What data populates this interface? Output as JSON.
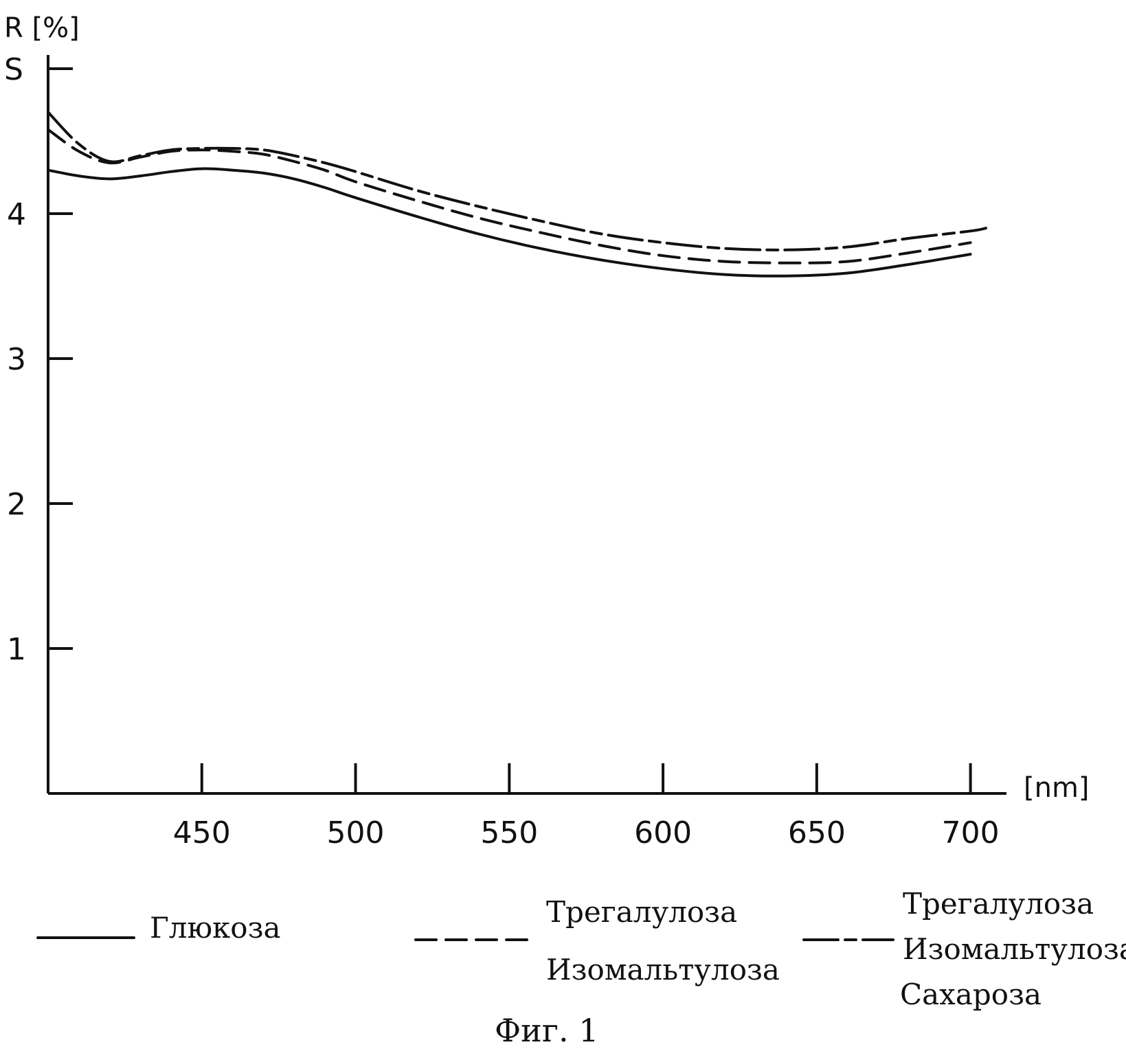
{
  "chart_data": {
    "type": "line",
    "ylabel": "R [%]",
    "xlabel": "[nm]",
    "xlim": [
      400,
      705
    ],
    "ylim": [
      0,
      5
    ],
    "xticks": [
      450,
      500,
      550,
      600,
      650,
      700
    ],
    "yticks": [
      1,
      2,
      3,
      4
    ],
    "ytick_top_label": "S",
    "series": [
      {
        "name": "Глюкоза",
        "style": "solid",
        "x": [
          400,
          410,
          420,
          430,
          440,
          450,
          460,
          470,
          480,
          490,
          500,
          520,
          540,
          560,
          580,
          600,
          620,
          640,
          660,
          680,
          700
        ],
        "y": [
          4.3,
          4.26,
          4.24,
          4.26,
          4.29,
          4.31,
          4.3,
          4.28,
          4.24,
          4.18,
          4.11,
          3.98,
          3.86,
          3.76,
          3.68,
          3.62,
          3.58,
          3.57,
          3.59,
          3.65,
          3.72
        ]
      },
      {
        "name": "Трегалулоза Изомальтулоза",
        "style": "dashed",
        "x": [
          400,
          410,
          420,
          430,
          440,
          450,
          460,
          470,
          480,
          490,
          500,
          520,
          540,
          560,
          580,
          600,
          620,
          640,
          660,
          680,
          700
        ],
        "y": [
          4.58,
          4.43,
          4.35,
          4.39,
          4.43,
          4.44,
          4.43,
          4.41,
          4.36,
          4.3,
          4.22,
          4.09,
          3.97,
          3.87,
          3.78,
          3.71,
          3.67,
          3.66,
          3.67,
          3.73,
          3.8
        ]
      },
      {
        "name": "Трегалулоза Изомальтулоза Сахароза",
        "style": "dash-dot",
        "x": [
          400,
          410,
          420,
          430,
          440,
          450,
          460,
          470,
          480,
          490,
          500,
          520,
          540,
          560,
          580,
          600,
          620,
          640,
          660,
          680,
          700,
          705
        ],
        "y": [
          4.7,
          4.48,
          4.36,
          4.4,
          4.44,
          4.45,
          4.45,
          4.44,
          4.4,
          4.35,
          4.29,
          4.16,
          4.05,
          3.95,
          3.86,
          3.8,
          3.76,
          3.75,
          3.77,
          3.83,
          3.88,
          3.9
        ]
      }
    ],
    "legend": [
      {
        "lines": [
          "Глюкоза"
        ]
      },
      {
        "lines": [
          "Трегалулоза",
          "Изомальтулоза"
        ]
      },
      {
        "lines": [
          "Трегалулоза",
          "Изомальтулоза",
          "Сахароза"
        ]
      }
    ]
  },
  "caption": "Фиг. 1",
  "colors": {
    "ink": "#111111",
    "background": "#ffffff"
  }
}
